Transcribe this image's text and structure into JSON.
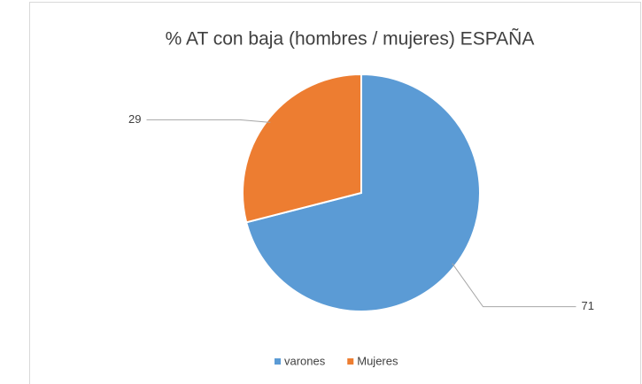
{
  "chart_data": {
    "type": "pie",
    "title": "% AT con baja (hombres / mujeres) ESPAÑA",
    "categories": [
      "varones",
      "Mujeres"
    ],
    "values": [
      71,
      29
    ],
    "colors": [
      "#5b9bd5",
      "#ed7d31"
    ],
    "legend": "bottom"
  }
}
